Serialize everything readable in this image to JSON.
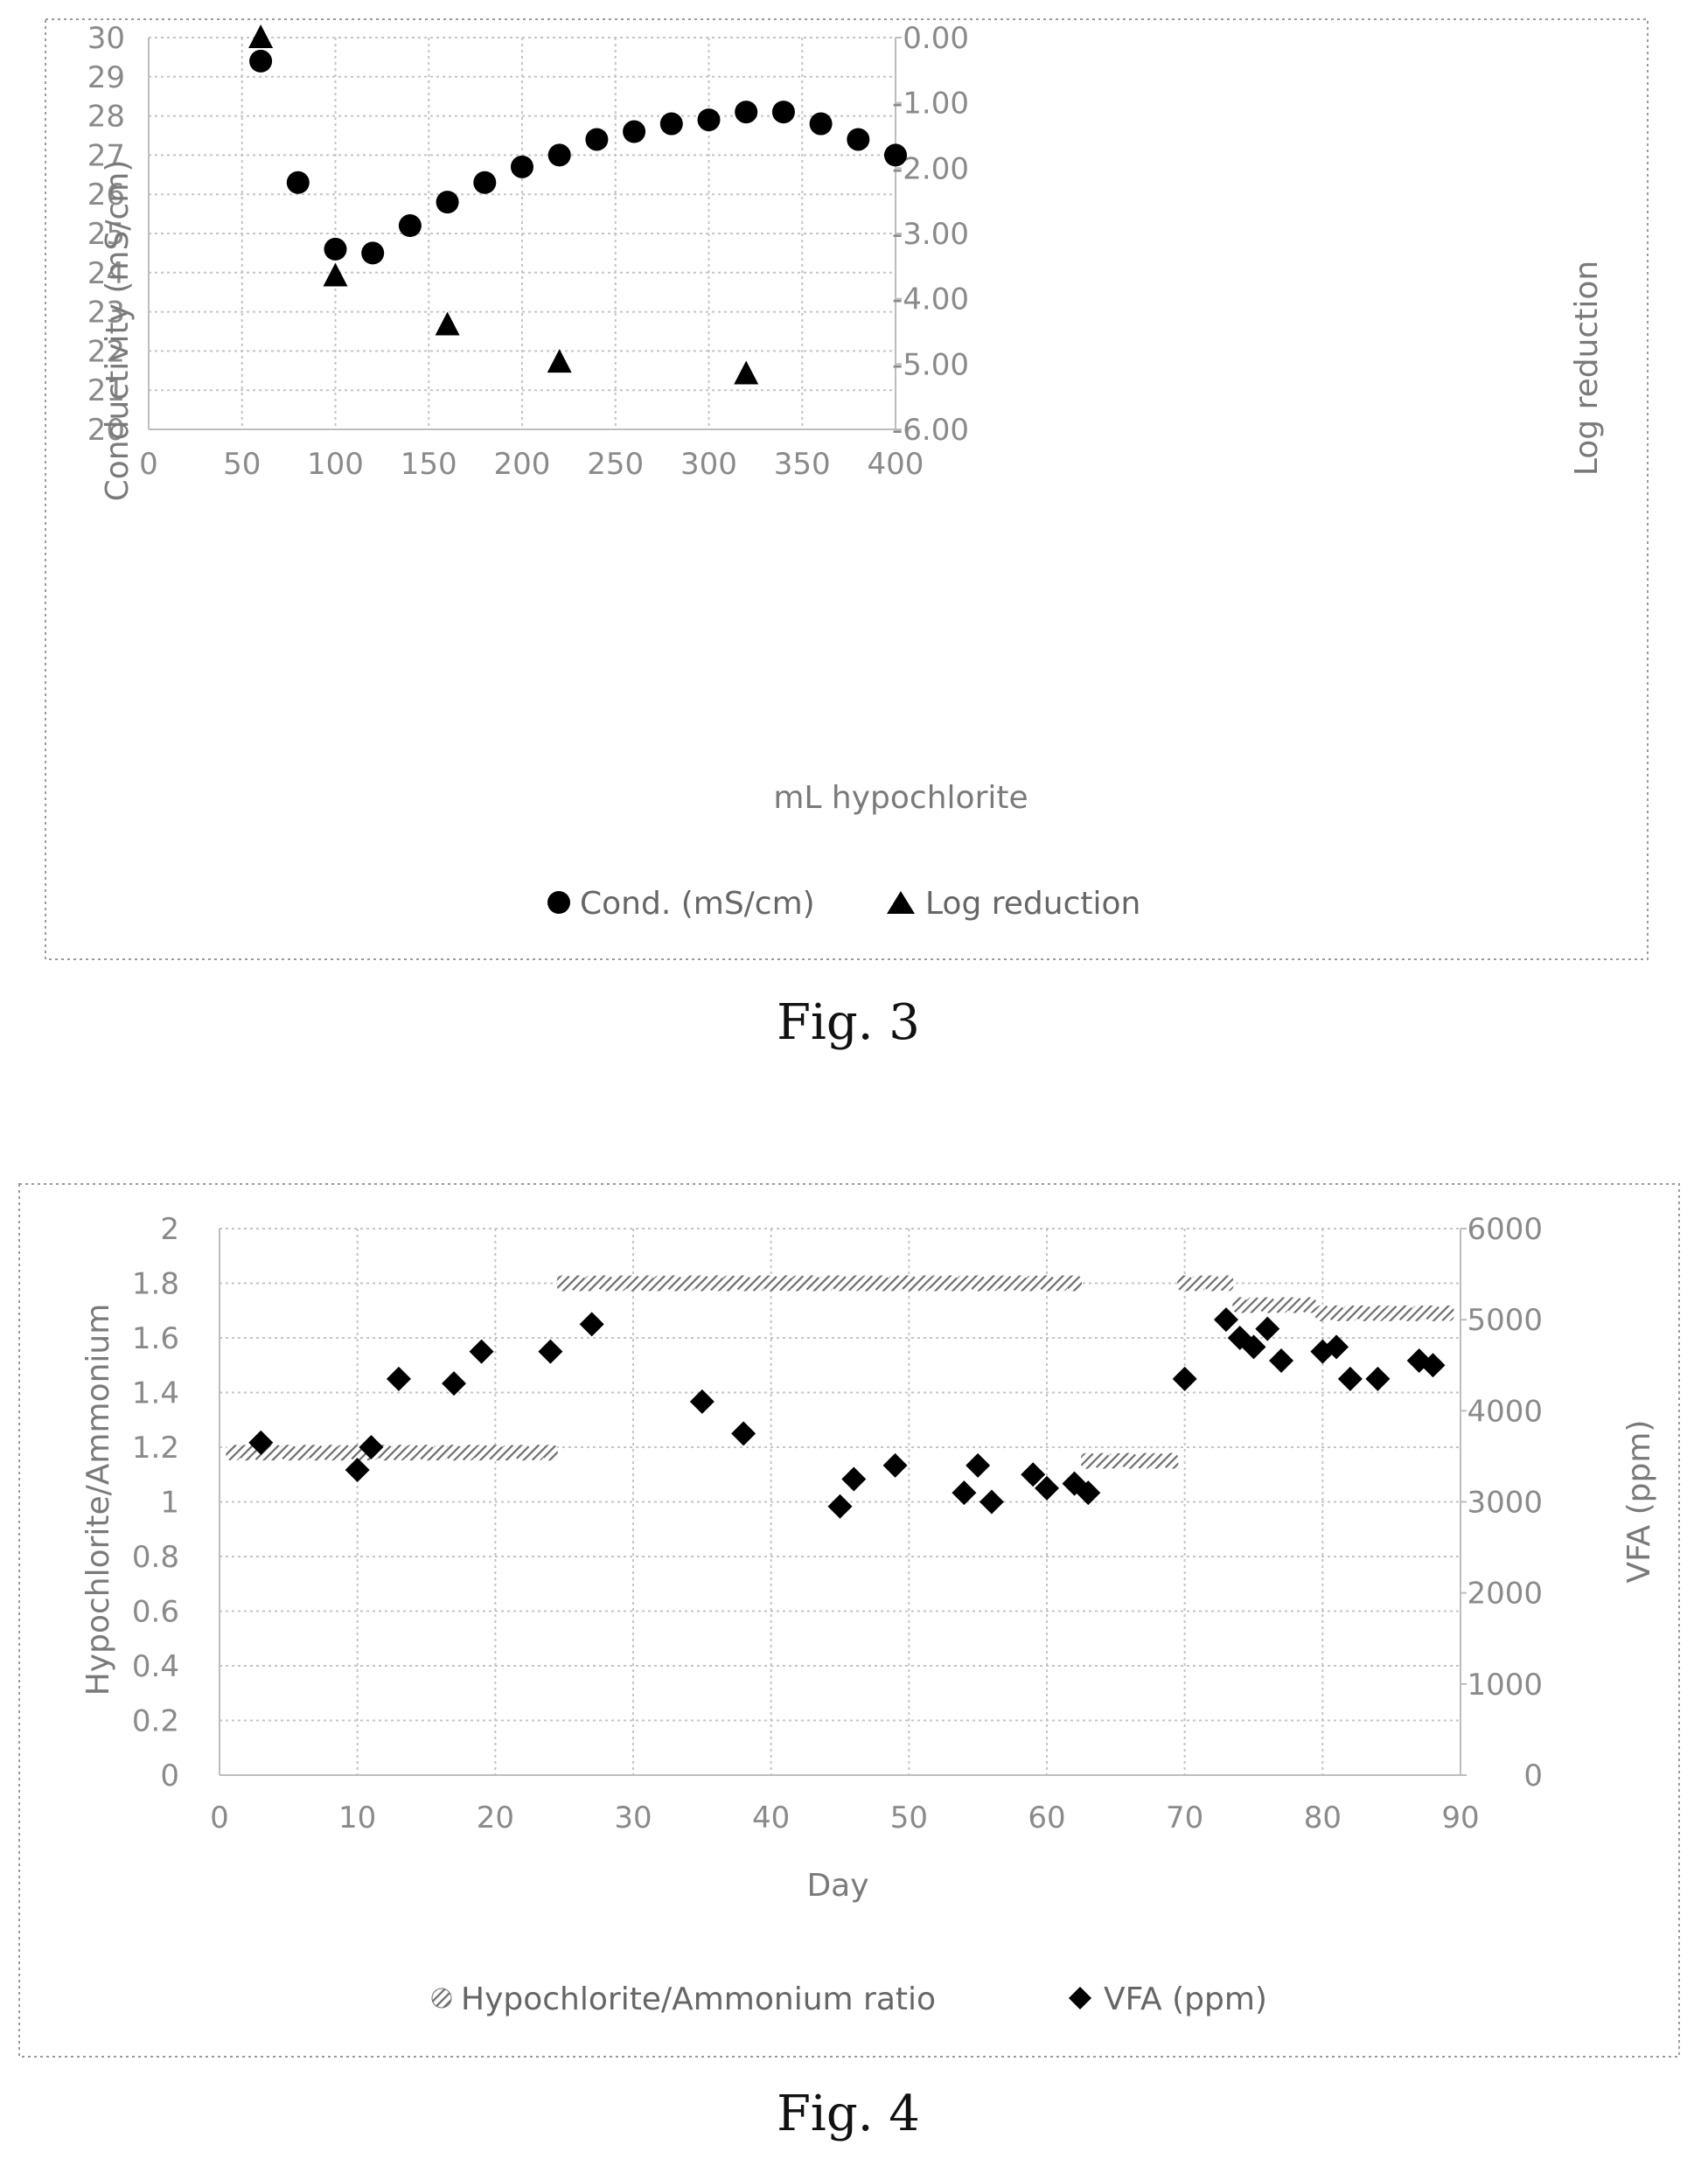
{
  "figures": [
    {
      "caption": "Fig. 3",
      "legend": [
        "Cond. (mS/cm)",
        "Log reduction"
      ]
    },
    {
      "caption": "Fig. 4",
      "legend": [
        "Hypochlorite/Ammonium ratio",
        "VFA (ppm)"
      ]
    }
  ],
  "chart_data": [
    {
      "type": "scatter",
      "xlabel": "mL hypochlorite",
      "ylabel": "Conductivity (mS/cm)",
      "y2label": "Log reduction",
      "xlim": [
        0,
        400
      ],
      "ylim": [
        20,
        30
      ],
      "y2lim": [
        -6,
        0
      ],
      "xticks": [
        "0",
        "50",
        "100",
        "150",
        "200",
        "250",
        "300",
        "350",
        "400"
      ],
      "yticks": [
        "20",
        "21",
        "22",
        "23",
        "24",
        "25",
        "26",
        "27",
        "28",
        "29",
        "30"
      ],
      "y2ticks": [
        "-6.00",
        "-5.00",
        "-4.00",
        "-3.00",
        "-2.00",
        "-1.00",
        "0.00"
      ],
      "grid": true,
      "legend_position": "bottom",
      "series": [
        {
          "name": "Cond. (mS/cm)",
          "marker": "circle",
          "axis": "left",
          "x": [
            60,
            80,
            100,
            120,
            140,
            160,
            180,
            200,
            220,
            240,
            260,
            280,
            300,
            320,
            340,
            360,
            380,
            400
          ],
          "y": [
            29.4,
            26.3,
            24.6,
            24.5,
            25.2,
            25.8,
            26.3,
            26.7,
            27.0,
            27.4,
            27.6,
            27.8,
            27.9,
            28.1,
            28.1,
            27.8,
            27.4,
            27.0
          ]
        },
        {
          "name": "Log reduction",
          "marker": "triangle",
          "axis": "right",
          "x": [
            60,
            100,
            160,
            220,
            320
          ],
          "y": [
            0.0,
            -3.65,
            -4.4,
            -4.97,
            -5.15
          ]
        }
      ]
    },
    {
      "type": "scatter",
      "xlabel": "Day",
      "ylabel": "Hypochlorite/Ammonium",
      "y2label": "VFA (ppm)",
      "xlim": [
        0,
        90
      ],
      "ylim": [
        0,
        2
      ],
      "y2lim": [
        0,
        6000
      ],
      "xticks": [
        "0",
        "10",
        "20",
        "30",
        "40",
        "50",
        "60",
        "70",
        "80",
        "90"
      ],
      "yticks": [
        "0",
        "0.2",
        "0.4",
        "0.6",
        "0.8",
        "1",
        "1.2",
        "1.4",
        "1.6",
        "1.8",
        "2"
      ],
      "y2ticks": [
        "0",
        "1000",
        "2000",
        "3000",
        "4000",
        "5000",
        "6000"
      ],
      "grid": true,
      "legend_position": "bottom",
      "series": [
        {
          "name": "Hypochlorite/Ammonium ratio",
          "marker": "hatched-bar",
          "axis": "left",
          "x": [
            1,
            2,
            3,
            4,
            5,
            6,
            7,
            8,
            9,
            10,
            11,
            12,
            13,
            14,
            15,
            16,
            17,
            18,
            19,
            20,
            21,
            22,
            23,
            24,
            25,
            26,
            27,
            28,
            29,
            30,
            31,
            32,
            33,
            34,
            35,
            36,
            37,
            38,
            39,
            40,
            41,
            42,
            43,
            44,
            45,
            46,
            47,
            48,
            49,
            50,
            51,
            52,
            53,
            54,
            55,
            56,
            57,
            58,
            59,
            60,
            61,
            62,
            63,
            64,
            65,
            66,
            67,
            68,
            69,
            70,
            71,
            72,
            73,
            74,
            75,
            76,
            77,
            78,
            79,
            80,
            81,
            82,
            83,
            84,
            85,
            86,
            87,
            88,
            89
          ],
          "y": [
            1.18,
            1.18,
            1.18,
            1.18,
            1.18,
            1.18,
            1.18,
            1.18,
            1.18,
            1.18,
            1.18,
            1.18,
            1.18,
            1.18,
            1.18,
            1.18,
            1.18,
            1.18,
            1.18,
            1.18,
            1.18,
            1.18,
            1.18,
            1.18,
            1.8,
            1.8,
            1.8,
            1.8,
            1.8,
            1.8,
            1.8,
            1.8,
            1.8,
            1.8,
            1.8,
            1.8,
            1.8,
            1.8,
            1.8,
            1.8,
            1.8,
            1.8,
            1.8,
            1.8,
            1.8,
            1.8,
            1.8,
            1.8,
            1.8,
            1.8,
            1.8,
            1.8,
            1.8,
            1.8,
            1.8,
            1.8,
            1.8,
            1.8,
            1.8,
            1.8,
            1.8,
            1.8,
            1.15,
            1.15,
            1.15,
            1.15,
            1.15,
            1.15,
            1.15,
            1.8,
            1.8,
            1.8,
            1.8,
            1.72,
            1.72,
            1.72,
            1.72,
            1.72,
            1.72,
            1.69,
            1.69,
            1.69,
            1.69,
            1.69,
            1.69,
            1.69,
            1.69,
            1.69,
            1.69
          ]
        },
        {
          "name": "VFA (ppm)",
          "marker": "diamond",
          "axis": "right",
          "x": [
            3,
            10,
            11,
            13,
            17,
            19,
            24,
            27,
            35,
            38,
            45,
            46,
            49,
            54,
            55,
            56,
            59,
            60,
            62,
            63,
            70,
            73,
            74,
            75,
            76,
            77,
            80,
            81,
            82,
            84,
            87,
            88
          ],
          "y": [
            3650,
            3350,
            3600,
            4350,
            4300,
            4650,
            4650,
            4950,
            4100,
            3750,
            2950,
            3250,
            3400,
            3100,
            3400,
            3000,
            3300,
            3150,
            3200,
            3100,
            4350,
            5000,
            4800,
            4700,
            4900,
            4550,
            4650,
            4700,
            4350,
            4350,
            4550,
            4500
          ]
        }
      ]
    }
  ]
}
